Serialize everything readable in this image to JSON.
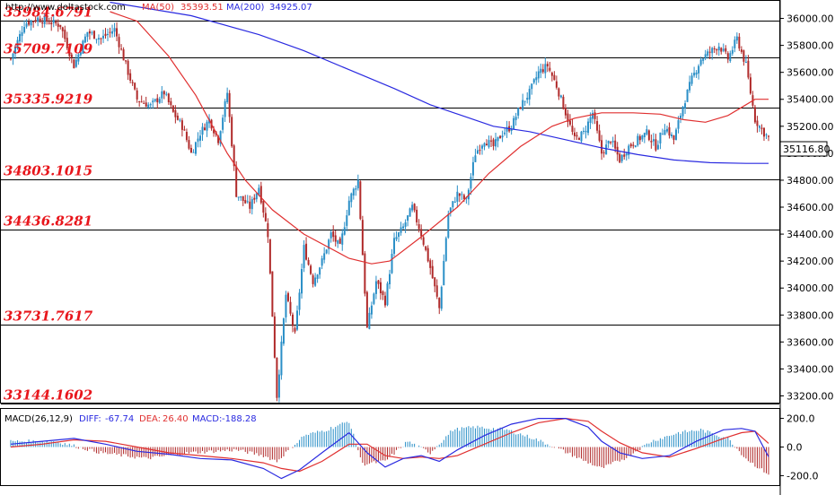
{
  "header": {
    "url": "http://www.deltastock.com",
    "ma50_label": "MA(50)",
    "ma50_value": "35393.51",
    "ma200_label": "MA(200)",
    "ma200_value": "34925.07"
  },
  "macd_header": {
    "title": "MACD(26,12,9)",
    "diff_label": "DIFF:",
    "diff_value": "-67.74",
    "dea_label": "DEA:",
    "dea_value": "26.40",
    "macd_label": "MACD:",
    "macd_value": "-188.28"
  },
  "price_tag": "35116.80",
  "colors": {
    "up": "#2a8fc7",
    "down": "#b02a2a",
    "ma50": "#e03030",
    "ma200": "#2a2ae0",
    "level_text": "#e8161c",
    "level_line": "#000000"
  },
  "chart_data": {
    "type": "candlestick",
    "title": "",
    "ylim": [
      33150,
      36130
    ],
    "y_ticks": [
      "36000.00",
      "35800.00",
      "35600.00",
      "35400.00",
      "35200.00",
      "35000.00",
      "34800.00",
      "34600.00",
      "34400.00",
      "34200.00",
      "34000.00",
      "33800.00",
      "33600.00",
      "33400.00",
      "33200.00"
    ],
    "y_tick_values": [
      36000,
      35800,
      35600,
      35400,
      35200,
      35000,
      34800,
      34600,
      34400,
      34200,
      34000,
      33800,
      33600,
      33400,
      33200
    ],
    "levels": [
      {
        "label": "35984.6791",
        "value": 35984.6791
      },
      {
        "label": "35709.7109",
        "value": 35709.7109
      },
      {
        "label": "35335.9219",
        "value": 35335.9219
      },
      {
        "label": "34803.1015",
        "value": 34803.1015
      },
      {
        "label": "34436.8281",
        "value": 34436.8281
      },
      {
        "label": "33731.7617",
        "value": 33731.7617
      },
      {
        "label": "33144.1602",
        "value": 33144.1602
      }
    ],
    "close_path": [
      [
        0,
        35700
      ],
      [
        6,
        35960
      ],
      [
        12,
        36000
      ],
      [
        22,
        35950
      ],
      [
        28,
        35650
      ],
      [
        34,
        35900
      ],
      [
        40,
        35850
      ],
      [
        46,
        35920
      ],
      [
        52,
        35600
      ],
      [
        56,
        35400
      ],
      [
        62,
        35350
      ],
      [
        68,
        35450
      ],
      [
        72,
        35300
      ],
      [
        76,
        35200
      ],
      [
        80,
        35000
      ],
      [
        84,
        35150
      ],
      [
        88,
        35250
      ],
      [
        92,
        35100
      ],
      [
        96,
        35450
      ],
      [
        100,
        34700
      ],
      [
        106,
        34600
      ],
      [
        110,
        34750
      ],
      [
        114,
        34400
      ],
      [
        118,
        33200
      ],
      [
        122,
        33950
      ],
      [
        126,
        33650
      ],
      [
        130,
        34300
      ],
      [
        134,
        34050
      ],
      [
        138,
        34200
      ],
      [
        142,
        34400
      ],
      [
        146,
        34300
      ],
      [
        150,
        34650
      ],
      [
        154,
        34800
      ],
      [
        158,
        33700
      ],
      [
        162,
        34050
      ],
      [
        166,
        33900
      ],
      [
        170,
        34350
      ],
      [
        174,
        34450
      ],
      [
        178,
        34600
      ],
      [
        182,
        34400
      ],
      [
        186,
        34150
      ],
      [
        190,
        33850
      ],
      [
        194,
        34550
      ],
      [
        198,
        34700
      ],
      [
        202,
        34650
      ],
      [
        206,
        35000
      ],
      [
        210,
        35100
      ],
      [
        214,
        35050
      ],
      [
        218,
        35150
      ],
      [
        222,
        35200
      ],
      [
        226,
        35350
      ],
      [
        230,
        35450
      ],
      [
        234,
        35600
      ],
      [
        238,
        35650
      ],
      [
        242,
        35500
      ],
      [
        246,
        35300
      ],
      [
        250,
        35100
      ],
      [
        254,
        35150
      ],
      [
        258,
        35300
      ],
      [
        262,
        35000
      ],
      [
        266,
        35100
      ],
      [
        270,
        34950
      ],
      [
        274,
        35050
      ],
      [
        278,
        35100
      ],
      [
        282,
        35150
      ],
      [
        286,
        35050
      ],
      [
        290,
        35200
      ],
      [
        294,
        35100
      ],
      [
        298,
        35350
      ],
      [
        302,
        35550
      ],
      [
        306,
        35700
      ],
      [
        310,
        35750
      ],
      [
        314,
        35800
      ],
      [
        318,
        35700
      ],
      [
        322,
        35850
      ],
      [
        326,
        35650
      ],
      [
        330,
        35250
      ],
      [
        334,
        35150
      ],
      [
        336,
        35117
      ]
    ],
    "ma50": [
      [
        44,
        36050
      ],
      [
        56,
        35980
      ],
      [
        70,
        35720
      ],
      [
        82,
        35430
      ],
      [
        96,
        35000
      ],
      [
        104,
        34800
      ],
      [
        116,
        34580
      ],
      [
        130,
        34400
      ],
      [
        150,
        34220
      ],
      [
        160,
        34180
      ],
      [
        168,
        34200
      ],
      [
        182,
        34380
      ],
      [
        198,
        34600
      ],
      [
        212,
        34850
      ],
      [
        226,
        35050
      ],
      [
        240,
        35200
      ],
      [
        250,
        35260
      ],
      [
        262,
        35300
      ],
      [
        276,
        35300
      ],
      [
        288,
        35290
      ],
      [
        298,
        35250
      ],
      [
        308,
        35230
      ],
      [
        318,
        35280
      ],
      [
        324,
        35340
      ],
      [
        330,
        35400
      ],
      [
        336,
        35400
      ]
    ],
    "ma200": [
      [
        44,
        36120
      ],
      [
        80,
        36020
      ],
      [
        110,
        35880
      ],
      [
        130,
        35760
      ],
      [
        150,
        35620
      ],
      [
        170,
        35480
      ],
      [
        186,
        35360
      ],
      [
        200,
        35280
      ],
      [
        214,
        35200
      ],
      [
        230,
        35160
      ],
      [
        246,
        35100
      ],
      [
        262,
        35040
      ],
      [
        278,
        34990
      ],
      [
        294,
        34950
      ],
      [
        310,
        34930
      ],
      [
        326,
        34925
      ],
      [
        336,
        34925
      ]
    ],
    "macd_panel": {
      "ylim": [
        -260,
        260
      ],
      "ticks": [
        "200.0",
        "0.0",
        "-200.0"
      ],
      "tick_values": [
        200,
        0,
        -200
      ],
      "diff": [
        [
          0,
          20
        ],
        [
          14,
          40
        ],
        [
          28,
          60
        ],
        [
          42,
          20
        ],
        [
          56,
          -30
        ],
        [
          70,
          -50
        ],
        [
          84,
          -80
        ],
        [
          98,
          -90
        ],
        [
          112,
          -150
        ],
        [
          120,
          -220
        ],
        [
          128,
          -160
        ],
        [
          138,
          -40
        ],
        [
          150,
          100
        ],
        [
          158,
          -40
        ],
        [
          166,
          -140
        ],
        [
          174,
          -80
        ],
        [
          182,
          -60
        ],
        [
          190,
          -100
        ],
        [
          198,
          -20
        ],
        [
          210,
          80
        ],
        [
          222,
          160
        ],
        [
          234,
          200
        ],
        [
          246,
          200
        ],
        [
          256,
          140
        ],
        [
          262,
          40
        ],
        [
          270,
          -40
        ],
        [
          280,
          -80
        ],
        [
          292,
          -60
        ],
        [
          304,
          40
        ],
        [
          316,
          120
        ],
        [
          324,
          130
        ],
        [
          330,
          110
        ],
        [
          336,
          -68
        ]
      ],
      "dea": [
        [
          0,
          0
        ],
        [
          14,
          20
        ],
        [
          28,
          50
        ],
        [
          42,
          40
        ],
        [
          56,
          0
        ],
        [
          70,
          -40
        ],
        [
          84,
          -60
        ],
        [
          98,
          -80
        ],
        [
          112,
          -110
        ],
        [
          120,
          -150
        ],
        [
          128,
          -170
        ],
        [
          138,
          -100
        ],
        [
          150,
          20
        ],
        [
          158,
          20
        ],
        [
          166,
          -60
        ],
        [
          174,
          -80
        ],
        [
          182,
          -70
        ],
        [
          190,
          -80
        ],
        [
          198,
          -60
        ],
        [
          210,
          20
        ],
        [
          222,
          100
        ],
        [
          234,
          170
        ],
        [
          246,
          200
        ],
        [
          256,
          180
        ],
        [
          262,
          110
        ],
        [
          270,
          30
        ],
        [
          280,
          -40
        ],
        [
          292,
          -70
        ],
        [
          304,
          -10
        ],
        [
          316,
          60
        ],
        [
          324,
          100
        ],
        [
          330,
          110
        ],
        [
          336,
          26
        ]
      ],
      "macd": [
        [
          0,
          40
        ],
        [
          20,
          40
        ],
        [
          40,
          -40
        ],
        [
          60,
          -80
        ],
        [
          80,
          -40
        ],
        [
          100,
          -20
        ],
        [
          112,
          -60
        ],
        [
          118,
          -100
        ],
        [
          130,
          80
        ],
        [
          140,
          120
        ],
        [
          150,
          180
        ],
        [
          156,
          -120
        ],
        [
          166,
          -100
        ],
        [
          176,
          40
        ],
        [
          186,
          -40
        ],
        [
          196,
          120
        ],
        [
          206,
          140
        ],
        [
          220,
          120
        ],
        [
          232,
          60
        ],
        [
          244,
          -20
        ],
        [
          252,
          -80
        ],
        [
          262,
          -150
        ],
        [
          272,
          -80
        ],
        [
          284,
          40
        ],
        [
          296,
          100
        ],
        [
          306,
          120
        ],
        [
          318,
          60
        ],
        [
          326,
          -80
        ],
        [
          332,
          -150
        ],
        [
          336,
          -188
        ]
      ]
    }
  }
}
